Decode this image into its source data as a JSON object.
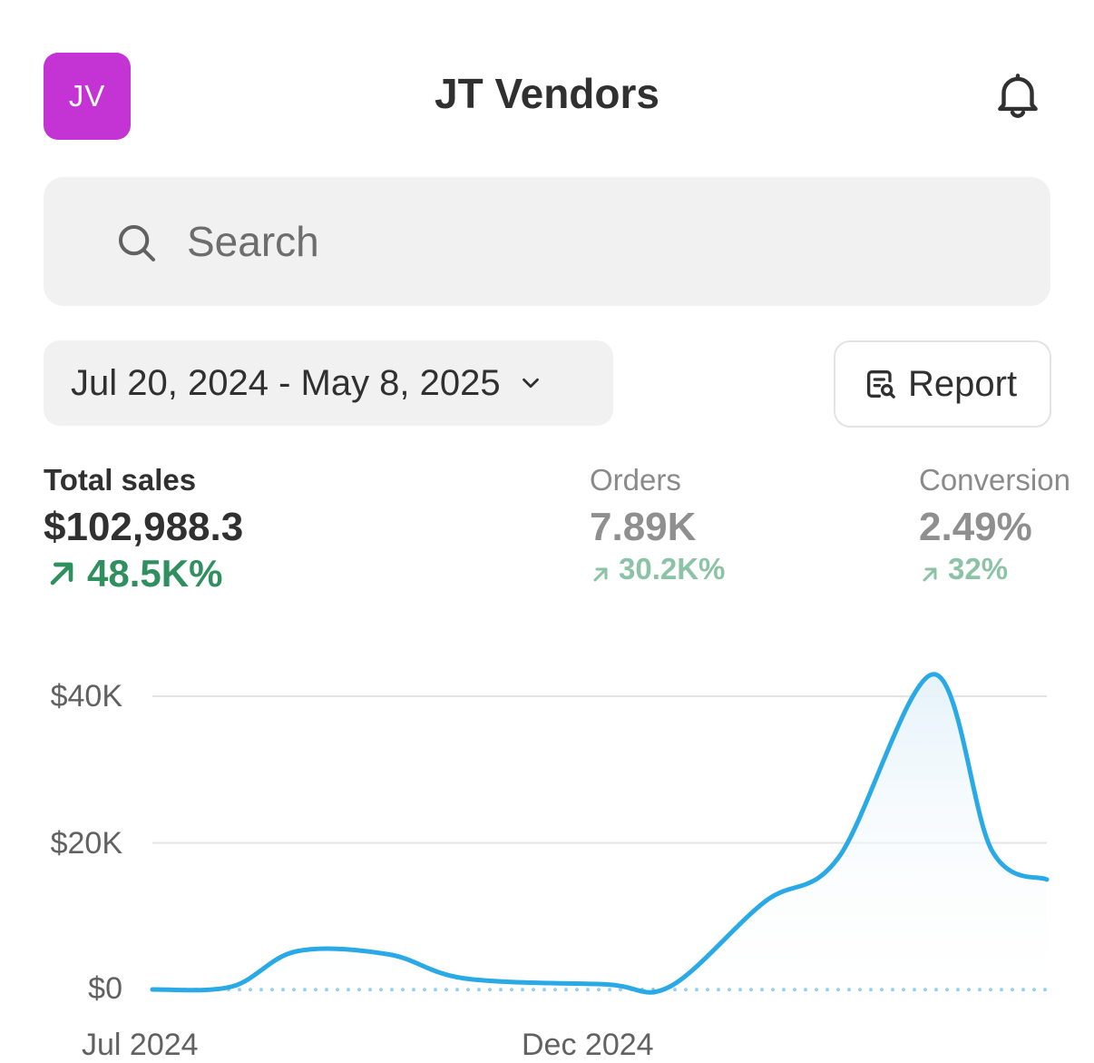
{
  "header": {
    "avatar_initials": "JV",
    "avatar_color": "#c433d3",
    "title": "JT Vendors",
    "notification_icon": "bell-icon"
  },
  "search": {
    "placeholder": "Search",
    "icon": "search-icon"
  },
  "filters": {
    "date_range": "Jul 20, 2024 - May 8, 2025",
    "date_icon": "chevron-down-icon",
    "report_label": "Report",
    "report_icon": "report-search-icon"
  },
  "metrics": [
    {
      "label": "Total sales",
      "value": "$102,988.3",
      "delta": "48.5K%"
    },
    {
      "label": "Orders",
      "value": "7.89K",
      "delta": "30.2K%"
    },
    {
      "label": "Conversion",
      "value": "2.49%",
      "delta": "32%"
    }
  ],
  "colors": {
    "accent_line": "#29a9e6",
    "positive": "#2f8f5f",
    "positive_dim": "#8cc3a6"
  },
  "chart_data": {
    "type": "area",
    "x_ticks": [
      "Jul 2024",
      "Dec 2024"
    ],
    "y_ticks": [
      "$0",
      "$20K",
      "$40K"
    ],
    "ylim": [
      0,
      40000
    ],
    "grid": true,
    "x": [
      "2024-07-20",
      "2024-08-15",
      "2024-09-05",
      "2024-10-05",
      "2024-10-30",
      "2024-12-15",
      "2025-01-05",
      "2025-02-05",
      "2025-03-01",
      "2025-04-01",
      "2025-04-20",
      "2025-05-08"
    ],
    "values": [
      0,
      400,
      5200,
      4800,
      1500,
      700,
      400,
      12000,
      18000,
      43000,
      19000,
      15000
    ],
    "comparison_baseline": 0
  }
}
